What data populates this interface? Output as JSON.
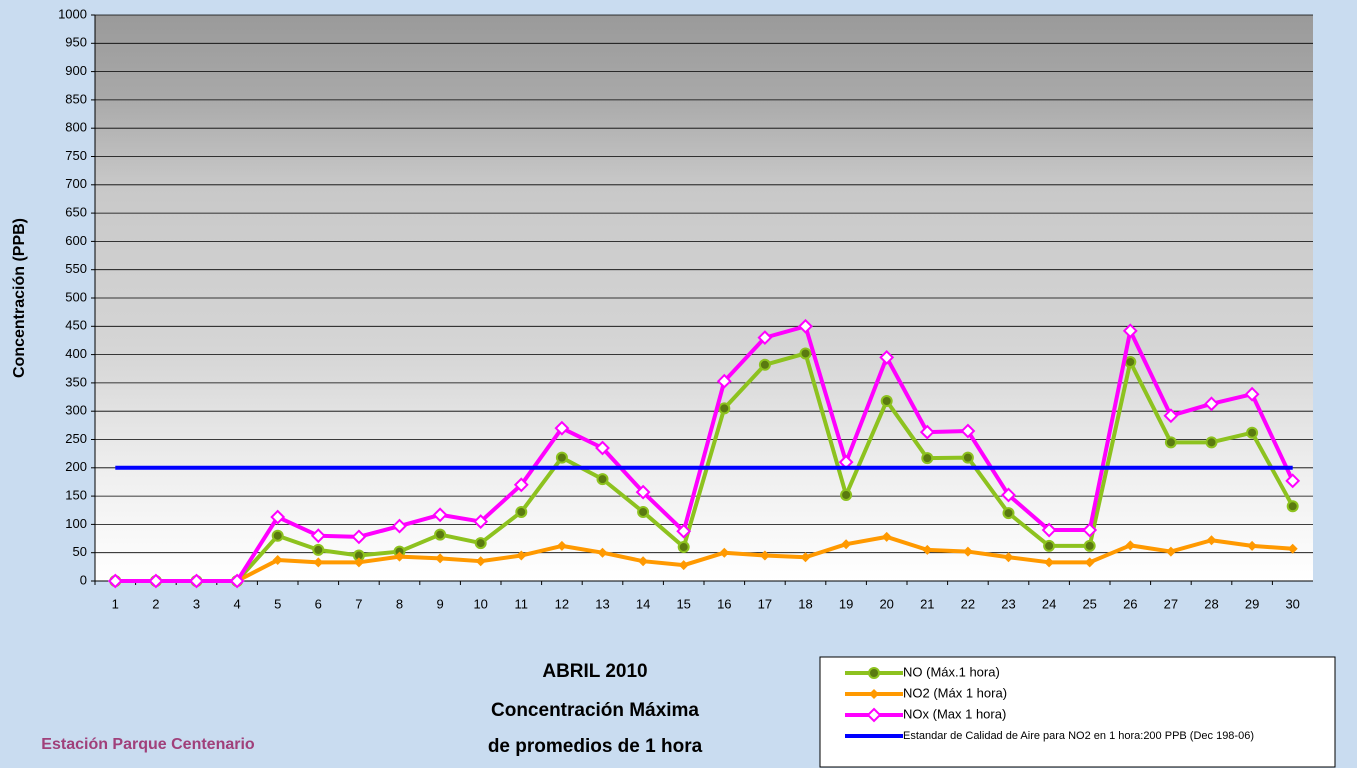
{
  "chart_data": {
    "type": "line",
    "title_lines": [
      "ABRIL 2010",
      "Concentración Máxima",
      "de promedios de 1 hora"
    ],
    "station": "Estación Parque Centenario",
    "y_label": "Concentración  (PPB)",
    "categories": [
      "1",
      "2",
      "3",
      "4",
      "5",
      "6",
      "7",
      "8",
      "9",
      "10",
      "11",
      "12",
      "13",
      "14",
      "15",
      "16",
      "17",
      "18",
      "19",
      "20",
      "21",
      "22",
      "23",
      "24",
      "25",
      "26",
      "27",
      "28",
      "29",
      "30"
    ],
    "series": [
      {
        "name": "NO (Máx.1 hora)",
        "color": "#8dc21f",
        "marker": "circle",
        "values": [
          0,
          0,
          0,
          0,
          80,
          55,
          45,
          52,
          82,
          67,
          122,
          218,
          180,
          122,
          60,
          305,
          382,
          402,
          152,
          318,
          217,
          218,
          120,
          62,
          62,
          387,
          245,
          245,
          262,
          132
        ]
      },
      {
        "name": "NO2 (Máx 1 hora)",
        "color": "#ff9900",
        "marker": "diamond",
        "values": [
          0,
          0,
          0,
          0,
          37,
          33,
          33,
          43,
          40,
          35,
          45,
          62,
          50,
          35,
          28,
          50,
          45,
          42,
          65,
          78,
          55,
          52,
          42,
          33,
          33,
          63,
          52,
          72,
          62,
          57
        ]
      },
      {
        "name": "NOx (Max 1 hora)",
        "color": "#ff00ff",
        "marker": "diamond-open",
        "values": [
          0,
          0,
          0,
          0,
          113,
          80,
          78,
          97,
          117,
          105,
          170,
          270,
          235,
          157,
          88,
          353,
          430,
          450,
          210,
          395,
          263,
          265,
          152,
          90,
          90,
          442,
          292,
          313,
          330,
          177
        ]
      },
      {
        "name": "Estandar de Calidad de Aire para NO2 en 1 hora:200 PPB (Dec 198-06)",
        "color": "#0000ff",
        "marker": "none",
        "values": [
          200,
          200,
          200,
          200,
          200,
          200,
          200,
          200,
          200,
          200,
          200,
          200,
          200,
          200,
          200,
          200,
          200,
          200,
          200,
          200,
          200,
          200,
          200,
          200,
          200,
          200,
          200,
          200,
          200,
          200
        ]
      }
    ],
    "ylim": [
      0,
      1000
    ],
    "yticks": [
      0,
      50,
      100,
      150,
      200,
      250,
      300,
      350,
      400,
      450,
      500,
      550,
      600,
      650,
      700,
      750,
      800,
      850,
      900,
      950,
      1000
    ],
    "grid": true
  }
}
